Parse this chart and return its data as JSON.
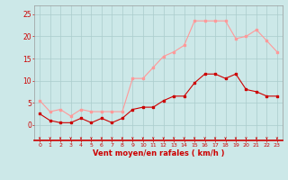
{
  "x": [
    0,
    1,
    2,
    3,
    4,
    5,
    6,
    7,
    8,
    9,
    10,
    11,
    12,
    13,
    14,
    15,
    16,
    17,
    18,
    19,
    20,
    21,
    22,
    23
  ],
  "wind_avg": [
    2.5,
    1.0,
    0.5,
    0.5,
    1.5,
    0.5,
    1.5,
    0.5,
    1.5,
    3.5,
    4.0,
    4.0,
    5.5,
    6.5,
    6.5,
    9.5,
    11.5,
    11.5,
    10.5,
    11.5,
    8.0,
    7.5,
    6.5,
    6.5
  ],
  "wind_gust": [
    5.5,
    3.0,
    3.5,
    2.0,
    3.5,
    3.0,
    3.0,
    3.0,
    3.0,
    10.5,
    10.5,
    13.0,
    15.5,
    16.5,
    18.0,
    23.5,
    23.5,
    23.5,
    23.5,
    19.5,
    20.0,
    21.5,
    19.0,
    16.5
  ],
  "avg_color": "#cc0000",
  "gust_color": "#ff9999",
  "bg_color": "#cce8e8",
  "grid_color": "#aacccc",
  "xlabel": "Vent moyen/en rafales ( km/h )",
  "yticks": [
    0,
    5,
    10,
    15,
    20,
    25
  ],
  "ylim": [
    -3.5,
    27
  ],
  "xlim": [
    -0.5,
    23.5
  ]
}
